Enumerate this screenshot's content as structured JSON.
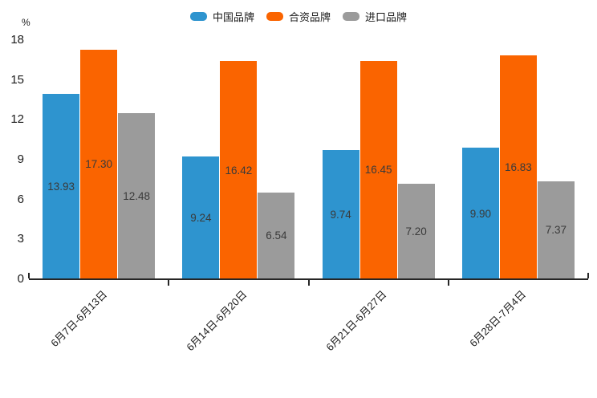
{
  "chart_data": {
    "type": "bar",
    "title": "",
    "unit_label": "%",
    "categories": [
      "6月7日-6月13日",
      "6月14日-6月20日",
      "6月21日-6月27日",
      "6月28日-7月4日"
    ],
    "series": [
      {
        "name": "中国品牌",
        "color": "#2E94CF",
        "values": [
          13.93,
          9.24,
          9.74,
          9.9
        ]
      },
      {
        "name": "合资品牌",
        "color": "#FA6400",
        "values": [
          17.3,
          16.42,
          16.45,
          16.83
        ]
      },
      {
        "name": "进口品牌",
        "color": "#9B9B9B",
        "values": [
          12.48,
          6.54,
          7.2,
          7.37
        ]
      }
    ],
    "ylim": [
      0,
      18
    ],
    "yticks": [
      0,
      3,
      6,
      9,
      12,
      15,
      18
    ],
    "grid": false,
    "legend_position": "top",
    "value_labels": "inside-center",
    "value_label_decimals": 2,
    "xlabel": "",
    "ylabel": ""
  }
}
